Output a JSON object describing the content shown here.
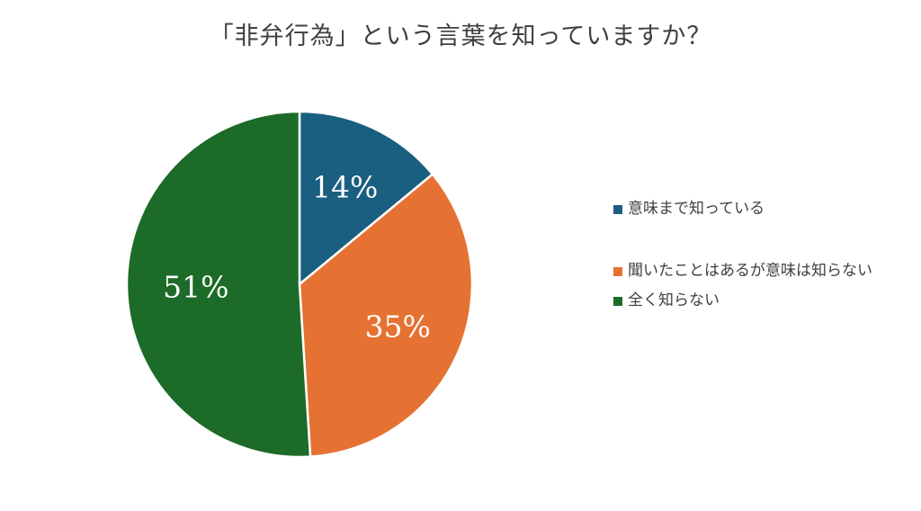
{
  "chart_data": {
    "type": "pie",
    "title": "「非弁行為」という言葉を知っていますか？",
    "categories": [
      "意味まで知っている",
      "聞いたことはあるが意味は知らない",
      "全く知らない"
    ],
    "values": [
      14,
      35,
      51
    ],
    "value_labels": [
      "14%",
      "35%",
      "51%"
    ],
    "colors": [
      "#1a5e80",
      "#e57232",
      "#1c6b28"
    ],
    "legend_position": "right"
  }
}
